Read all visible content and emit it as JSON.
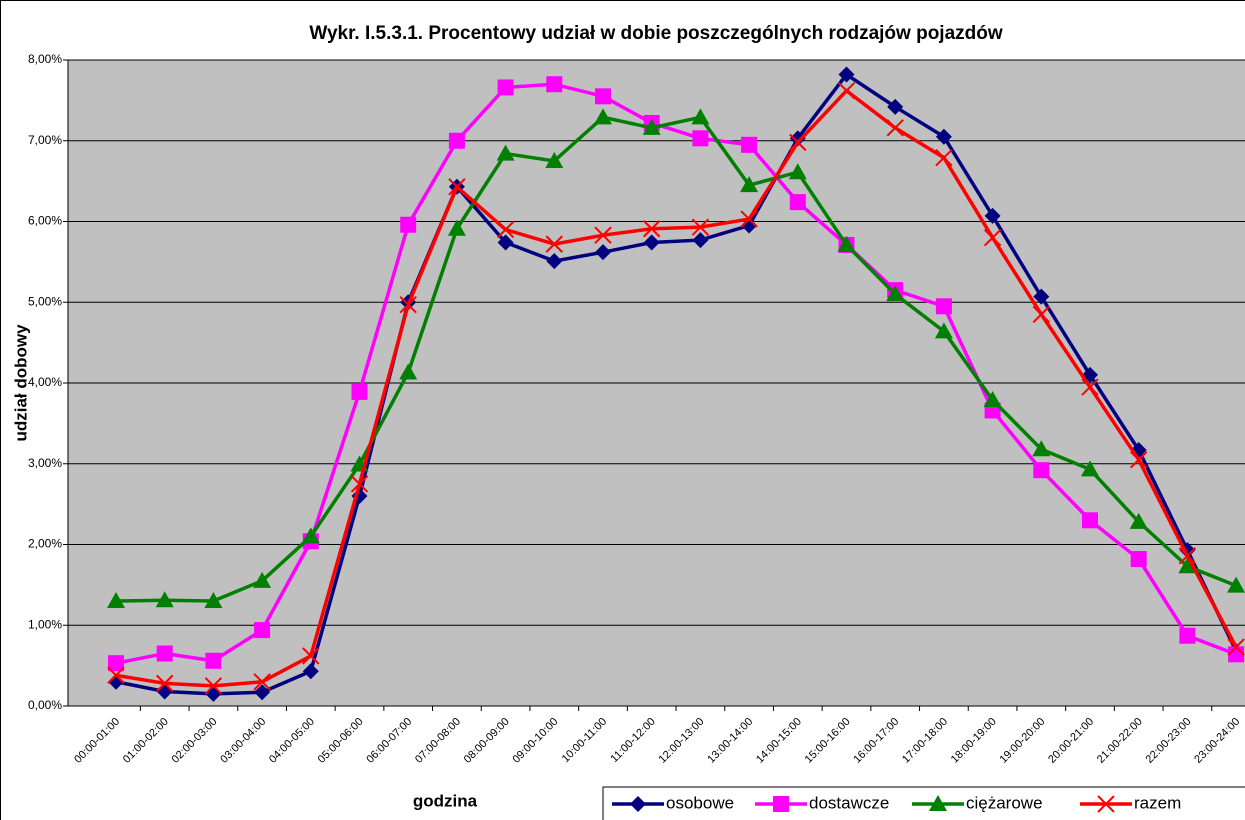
{
  "chart_data": {
    "type": "line",
    "title": "Wykr. I.5.3.1. Procentowy udział w dobie poszczególnych rodzajów pojazdów",
    "y_label": "udział dobowy",
    "x_label": "godzina",
    "categories": [
      "00:00-01:00",
      "01:00-02:00",
      "02:00-03:00",
      "03:00-04:00",
      "04:00-05:00",
      "05:00-06:00",
      "06:00-07:00",
      "07:00-08:00",
      "08:00-09:00",
      "09:00-10:00",
      "10:00-11:00",
      "11:00-12:00",
      "12:00-13:00",
      "13:00-14:00",
      "14:00-15:00",
      "15:00-16:00",
      "16:00-17:00",
      "17:00-18:00",
      "18:00-19:00",
      "19:00-20:00",
      "20:00-21:00",
      "21:00-22:00",
      "22:00-23:00",
      "23:00-24:00"
    ],
    "series": [
      {
        "name": "osobowe",
        "color": "#000080",
        "marker": "diamond",
        "values": [
          0.3,
          0.18,
          0.15,
          0.17,
          0.43,
          2.6,
          5.0,
          6.43,
          5.74,
          5.51,
          5.62,
          5.74,
          5.77,
          5.95,
          7.03,
          7.82,
          7.42,
          7.05,
          6.07,
          5.07,
          4.1,
          3.17,
          1.93,
          0.68
        ]
      },
      {
        "name": "dostawcze",
        "color": "#ff00ff",
        "marker": "square",
        "values": [
          0.53,
          0.65,
          0.56,
          0.94,
          2.04,
          3.89,
          5.96,
          7.0,
          7.66,
          7.7,
          7.55,
          7.22,
          7.03,
          6.95,
          6.24,
          5.71,
          5.15,
          4.95,
          3.66,
          2.92,
          2.3,
          1.82,
          0.87,
          0.64
        ]
      },
      {
        "name": "ciężarowe",
        "color": "#008000",
        "marker": "triangle",
        "values": [
          1.3,
          1.31,
          1.3,
          1.55,
          2.1,
          2.99,
          4.13,
          5.91,
          6.84,
          6.75,
          7.29,
          7.16,
          7.29,
          6.45,
          6.61,
          5.71,
          5.1,
          4.64,
          3.79,
          3.18,
          2.93,
          2.28,
          1.73,
          1.49
        ]
      },
      {
        "name": "razem",
        "color": "#ff0000",
        "marker": "x",
        "values": [
          0.38,
          0.28,
          0.25,
          0.3,
          0.62,
          2.75,
          4.97,
          6.43,
          5.9,
          5.72,
          5.83,
          5.91,
          5.93,
          6.03,
          6.98,
          7.62,
          7.16,
          6.79,
          5.8,
          4.85,
          3.95,
          3.05,
          1.86,
          0.73
        ]
      }
    ],
    "ylim": [
      0,
      8
    ],
    "yticks": [
      {
        "value": 0,
        "label": "0,00%"
      },
      {
        "value": 1,
        "label": "1,00%"
      },
      {
        "value": 2,
        "label": "2,00%"
      },
      {
        "value": 3,
        "label": "3,00%"
      },
      {
        "value": 4,
        "label": "4,00%"
      },
      {
        "value": 5,
        "label": "5,00%"
      },
      {
        "value": 6,
        "label": "6,00%"
      },
      {
        "value": 7,
        "label": "7,00%"
      },
      {
        "value": 8,
        "label": "8,00%"
      }
    ],
    "grid": true
  }
}
